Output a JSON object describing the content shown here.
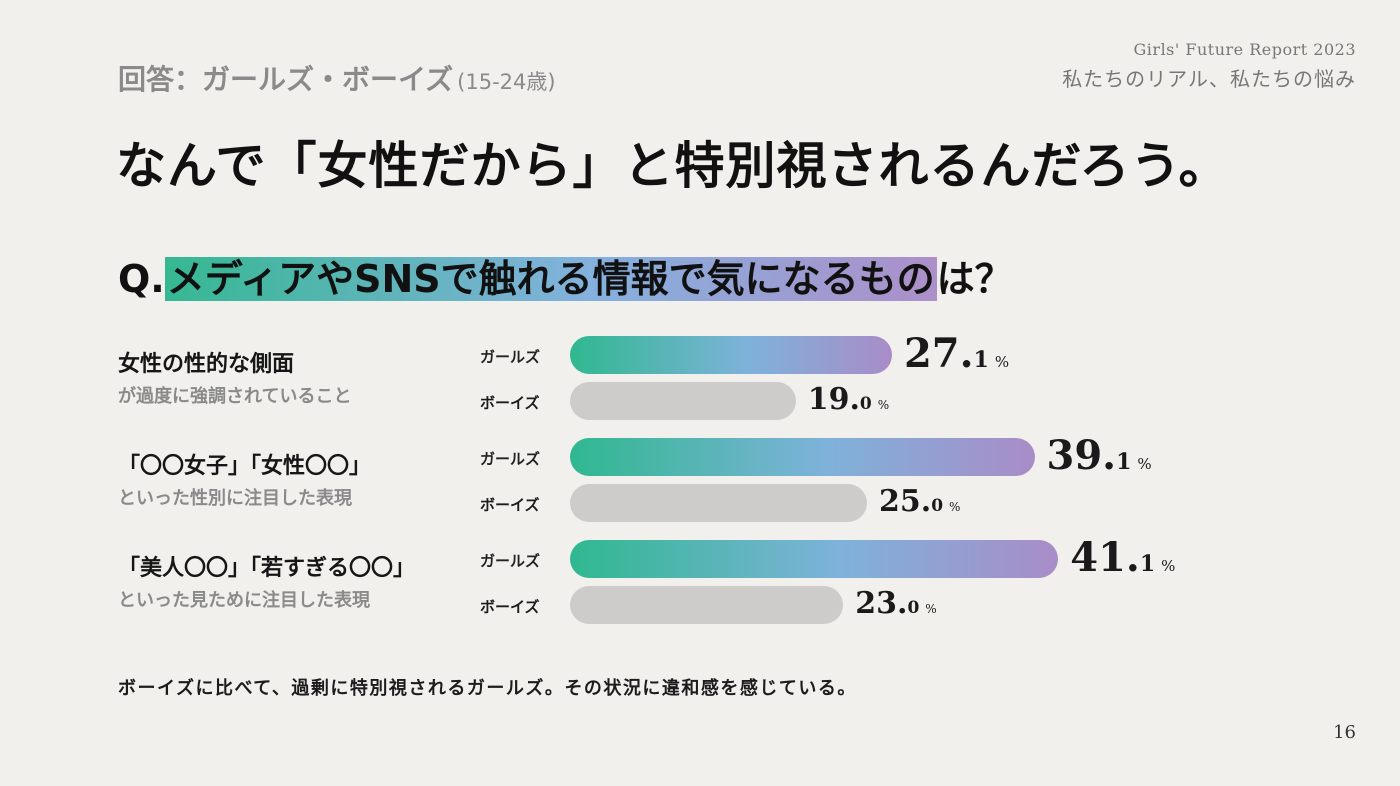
{
  "header": {
    "respondents": "回答：ガールズ・ボーイズ",
    "age_range": "(15-24歳)",
    "report_name": "Girls' Future Report 2023",
    "report_subtitle": "私たちのリアル、私たちの悩み"
  },
  "headline": "なんで「女性だから」と特別視されるんだろう。",
  "question": {
    "prefix": "Q.",
    "highlighted": "メディアやSNSで触れる情報で気になるもの",
    "suffix": "は？"
  },
  "colors": {
    "girls_gradient": [
      "#2fb88f",
      "#7eb2da",
      "#a98cc8"
    ],
    "boys_bar": "#cdcccb",
    "group_label_girls": "#222222",
    "group_label_boys": "#1c1c1c"
  },
  "chart_data": {
    "type": "bar",
    "orientation": "horizontal",
    "series": [
      {
        "name": "ガールズ",
        "values": [
          27.1,
          39.1,
          41.1
        ]
      },
      {
        "name": "ボーイズ",
        "values": [
          19.0,
          25.0,
          23.0
        ]
      }
    ],
    "items": [
      {
        "label_main": "女性の性的な側面",
        "label_sub": "が過度に強調されていること",
        "rows": [
          {
            "group": "ガールズ",
            "int": "27.",
            "dec": "1",
            "pct": "%"
          },
          {
            "group": "ボーイズ",
            "int": "19.",
            "dec": "0",
            "pct": "%"
          }
        ]
      },
      {
        "label_main": "「〇〇女子」「女性〇〇」",
        "label_sub": "といった性別に注目した表現",
        "rows": [
          {
            "group": "ガールズ",
            "int": "39.",
            "dec": "1",
            "pct": "%"
          },
          {
            "group": "ボーイズ",
            "int": "25.",
            "dec": "0",
            "pct": "%"
          }
        ]
      },
      {
        "label_main": "「美人〇〇」「若すぎる〇〇」",
        "label_sub": "といった見ために注目した表現",
        "rows": [
          {
            "group": "ガールズ",
            "int": "41.",
            "dec": "1",
            "pct": "%"
          },
          {
            "group": "ボーイズ",
            "int": "23.",
            "dec": "0",
            "pct": "%"
          }
        ]
      }
    ],
    "unit": "%",
    "xlim": [
      0,
      60
    ]
  },
  "conclusion": "ボーイズに比べて、過剰に特別視されるガールズ。その状況に違和感を感じている。",
  "page_number": "16"
}
